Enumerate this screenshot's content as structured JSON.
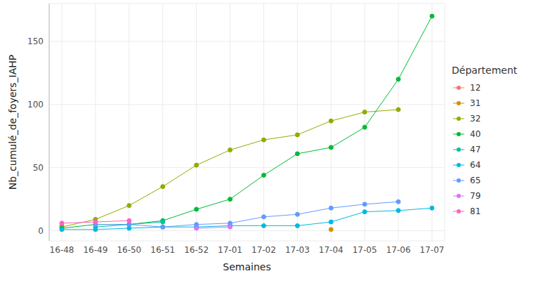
{
  "chart_data": {
    "type": "line",
    "x_label": "Semaines",
    "y_label": "Nb_cumulé_de_foyers_IAHP",
    "legend_title": "Département",
    "legend": "right",
    "grid": true,
    "marker": "circle",
    "categories": [
      "16-48",
      "16-49",
      "16-50",
      "16-51",
      "16-52",
      "17-01",
      "17-02",
      "17-03",
      "17-04",
      "17-05",
      "17-06",
      "17-07"
    ],
    "ylim": [
      -8,
      180
    ],
    "yticks": [
      0,
      50,
      100,
      150
    ],
    "series": [
      {
        "name": "12",
        "color": "#F8766D",
        "values": [
          4,
          null,
          null,
          null,
          null,
          null,
          null,
          null,
          null,
          null,
          null,
          null
        ]
      },
      {
        "name": "31",
        "color": "#D39200",
        "values": [
          null,
          null,
          null,
          null,
          null,
          null,
          null,
          null,
          1,
          null,
          null,
          null
        ]
      },
      {
        "name": "32",
        "color": "#93AA00",
        "values": [
          3,
          9,
          20,
          35,
          52,
          64,
          72,
          76,
          87,
          94,
          96,
          null
        ]
      },
      {
        "name": "40",
        "color": "#00BA38",
        "values": [
          2,
          5,
          5,
          8,
          17,
          25,
          44,
          61,
          66,
          82,
          120,
          170
        ]
      },
      {
        "name": "47",
        "color": "#00C19F",
        "values": [
          null,
          3,
          5,
          7,
          null,
          null,
          null,
          null,
          null,
          null,
          null,
          null
        ]
      },
      {
        "name": "64",
        "color": "#00B9E3",
        "values": [
          1,
          1,
          2,
          3,
          3,
          4,
          4,
          4,
          7,
          15,
          16,
          18
        ]
      },
      {
        "name": "65",
        "color": "#619CFF",
        "values": [
          null,
          5,
          5,
          3,
          5,
          6,
          11,
          13,
          18,
          21,
          23,
          null
        ]
      },
      {
        "name": "79",
        "color": "#DB72FB",
        "values": [
          null,
          null,
          null,
          null,
          2,
          3,
          null,
          null,
          null,
          null,
          null,
          null
        ]
      },
      {
        "name": "81",
        "color": "#FF61C3",
        "values": [
          6,
          7,
          8,
          null,
          null,
          null,
          null,
          null,
          null,
          null,
          null,
          null
        ]
      }
    ]
  }
}
